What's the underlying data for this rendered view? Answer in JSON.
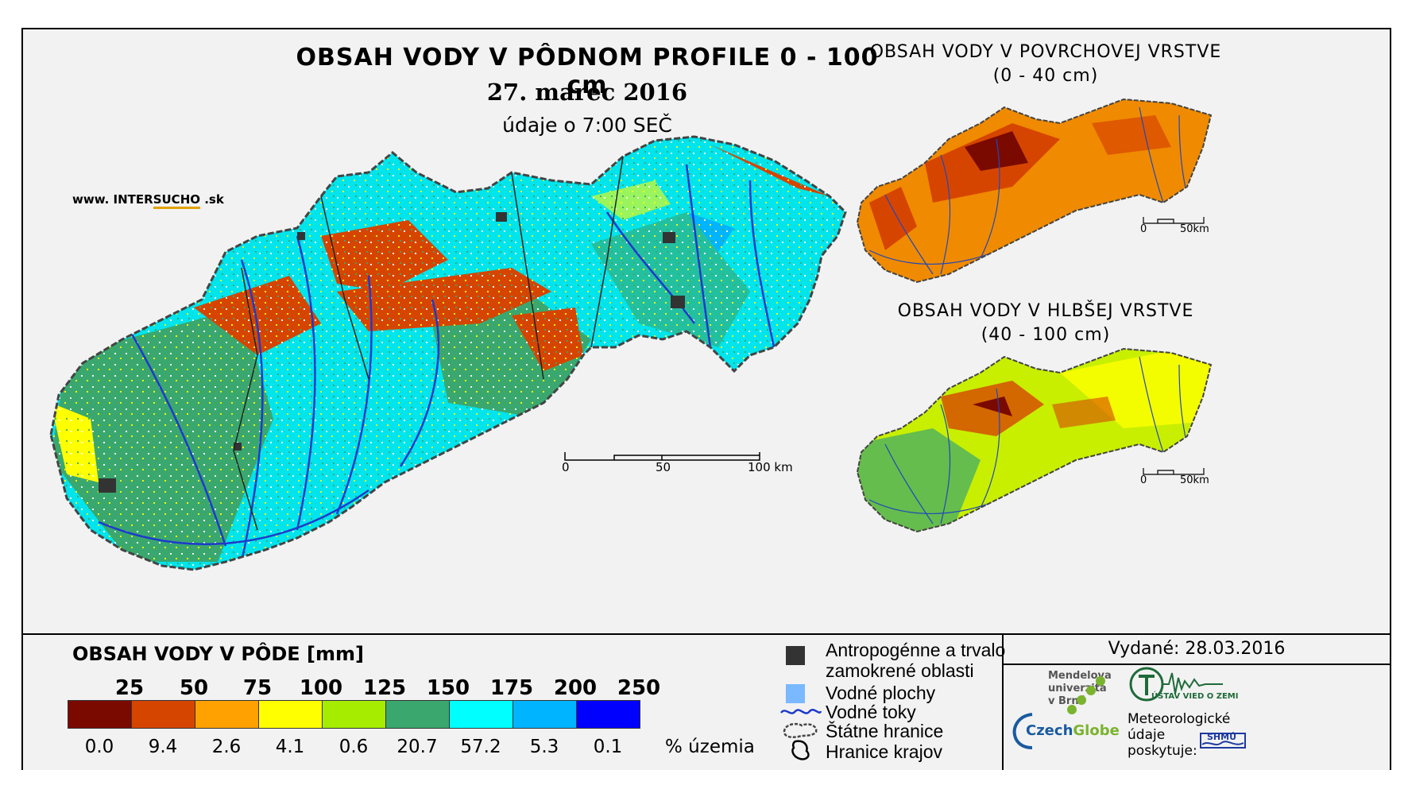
{
  "titles": {
    "main": "OBSAH VODY V PÔDNOM PROFILE 0 - 100 cm",
    "date": "27. marec 2016",
    "time": "údaje o 7:00 SEČ",
    "website_prefix": "www. INTER",
    "website_brand": "SUCHO",
    "website_suffix": " .sk",
    "surface_title_1": "OBSAH VODY V POVRCHOVEJ VRSTVE",
    "surface_title_2": "(0 - 40 cm)",
    "deep_title_1": "OBSAH VODY V HLBŠEJ VRSTVE",
    "deep_title_2": "(40 - 100 cm)"
  },
  "scale_main": {
    "labels": [
      "0",
      "50",
      "100 km"
    ]
  },
  "scale_small": {
    "labels": [
      "0",
      "50km"
    ]
  },
  "legend": {
    "title": "OBSAH VODY V PÔDE [mm]",
    "class_bounds": [
      "25",
      "50",
      "75",
      "100",
      "125",
      "150",
      "175",
      "200",
      "250"
    ],
    "classes": [
      {
        "color": "#7a0a00",
        "percent": "0.0"
      },
      {
        "color": "#d64500",
        "percent": "9.4"
      },
      {
        "color": "#ffa100",
        "percent": "2.6"
      },
      {
        "color": "#ffff00",
        "percent": "4.1"
      },
      {
        "color": "#a6ec00",
        "percent": "0.6"
      },
      {
        "color": "#3aa86e",
        "percent": "20.7"
      },
      {
        "color": "#00ffff",
        "percent": "57.2"
      },
      {
        "color": "#00b4ff",
        "percent": "5.3"
      },
      {
        "color": "#0000ff",
        "percent": "0.1"
      }
    ],
    "percent_unit": "% územia"
  },
  "symbols": {
    "anthropogenic_1": "Antropogénne a trvalo",
    "anthropogenic_2": "zamokrené oblasti",
    "water_bodies": "Vodné plochy",
    "streams": "Vodné toky",
    "state_border": "Štátne hranice",
    "region_border": "Hranice krajov"
  },
  "issued": "Vydané: 28.03.2016",
  "logos": {
    "mendel_1": "Mendelova",
    "mendel_2": "univerzita",
    "mendel_3": "v Brně",
    "czech": "Czech",
    "globe": "Globe",
    "uvz": "ÚSTAV VIED O ZEMI",
    "meteo_1": "Meteorologické",
    "meteo_2": "údaje",
    "meteo_3": "poskytuje:",
    "shmu": "SHMÚ"
  }
}
